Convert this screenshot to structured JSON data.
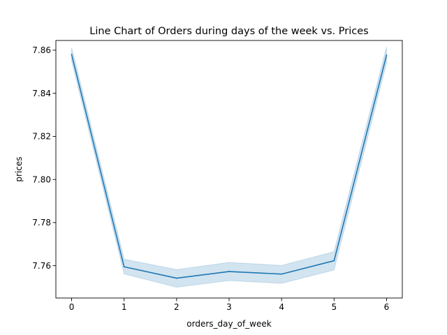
{
  "chart_data": {
    "type": "line",
    "title": "Line Chart of Orders during days of the week vs. Prices",
    "xlabel": "orders_day_of_week",
    "ylabel": "prices",
    "x": [
      0,
      1,
      2,
      3,
      4,
      5,
      6
    ],
    "xlim": [
      -0.3,
      6.3
    ],
    "ylim": [
      7.745,
      7.8645
    ],
    "xticks": [
      0,
      1,
      2,
      3,
      4,
      5,
      6
    ],
    "xtick_labels": [
      "0",
      "1",
      "2",
      "3",
      "4",
      "5",
      "6"
    ],
    "yticks": [
      7.76,
      7.78,
      7.8,
      7.82,
      7.84,
      7.86
    ],
    "ytick_labels": [
      "7.76",
      "7.78",
      "7.80",
      "7.82",
      "7.84",
      "7.86"
    ],
    "grid": false,
    "series": [
      {
        "color": "#1f77b4",
        "values": [
          7.858,
          7.7595,
          7.7542,
          7.7573,
          7.7561,
          7.7623,
          7.8577
        ],
        "ci_lower": [
          7.855,
          7.7562,
          7.75,
          7.7531,
          7.7518,
          7.758,
          7.854
        ],
        "ci_upper": [
          7.8612,
          7.763,
          7.7582,
          7.7615,
          7.7601,
          7.7665,
          7.8615
        ]
      }
    ]
  }
}
